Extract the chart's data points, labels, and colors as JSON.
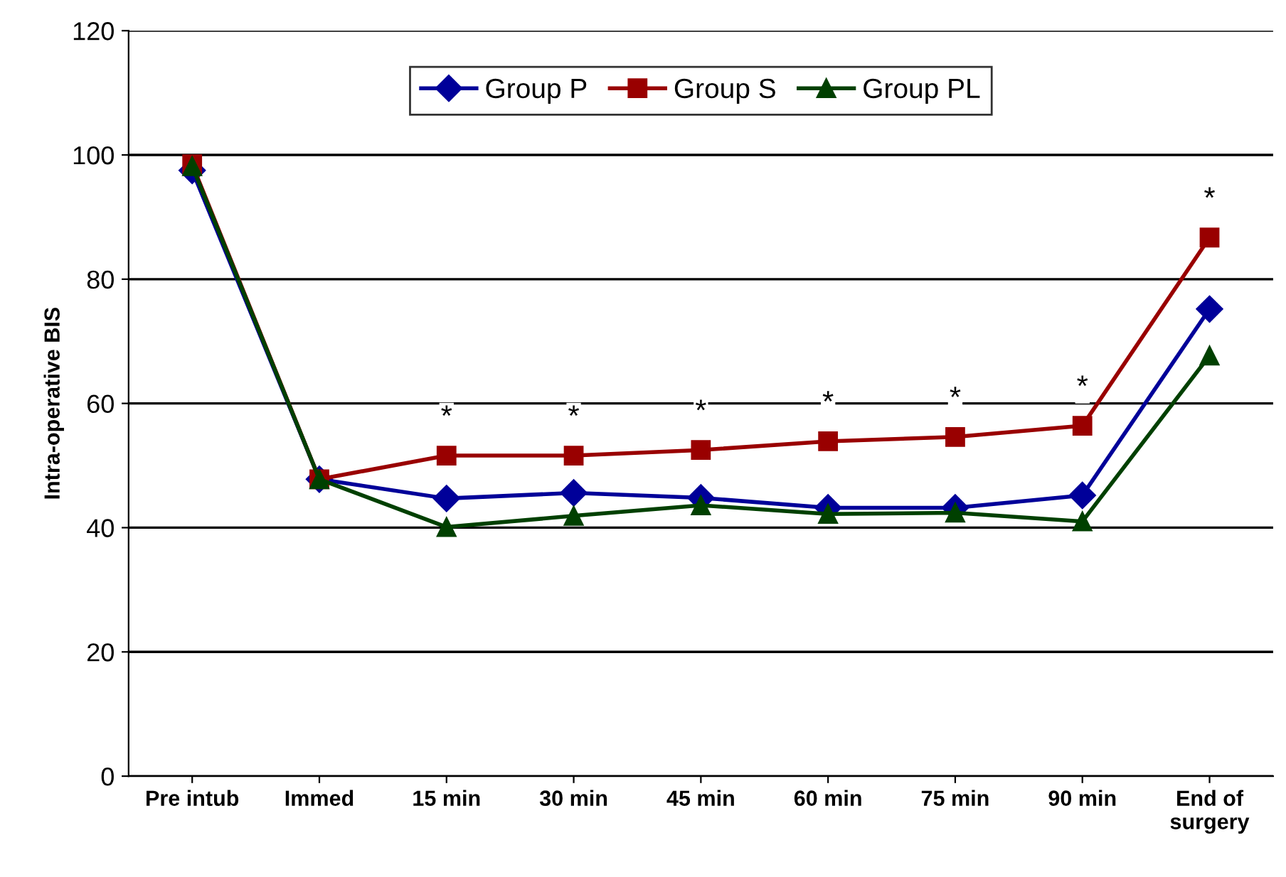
{
  "chart_data": {
    "type": "line",
    "ylabel": "Intra-operative BIS",
    "categories": [
      "Pre intub",
      "Immed",
      "15 min",
      "30 min",
      "45 min",
      "60 min",
      "75 min",
      "90 min",
      "End of\nsurgery"
    ],
    "series": [
      {
        "name": "Group P",
        "color": "#000099",
        "marker": "diamond",
        "values": [
          97.5,
          47.8,
          44.7,
          45.6,
          44.8,
          43.2,
          43.2,
          45.2,
          75.2
        ]
      },
      {
        "name": "Group S",
        "color": "#990000",
        "marker": "square",
        "values": [
          98.5,
          47.8,
          51.6,
          51.6,
          52.5,
          53.9,
          54.6,
          56.4,
          86.7
        ]
      },
      {
        "name": "Group PL",
        "color": "#004000",
        "marker": "triangle",
        "values": [
          98.2,
          47.8,
          40.1,
          41.9,
          43.6,
          42.2,
          42.4,
          41.0,
          67.7
        ]
      }
    ],
    "annotations": [
      "*",
      "*",
      "*",
      "*",
      "*",
      "*",
      "*"
    ],
    "ylim": [
      0,
      120
    ],
    "yticks": [
      0,
      20,
      40,
      60,
      80,
      100,
      120
    ],
    "grid": "y",
    "legend": "top"
  }
}
